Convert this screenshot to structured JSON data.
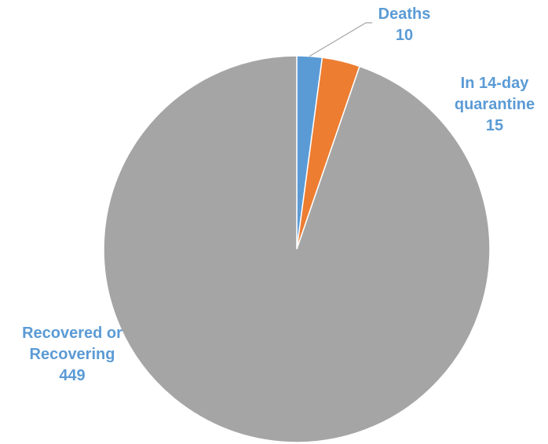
{
  "chart_data": {
    "type": "pie",
    "slices": [
      {
        "label_lines": [
          "Deaths"
        ],
        "value": 10,
        "value_label": "10",
        "color": "#5b9bd5"
      },
      {
        "label_lines": [
          "In 14-day",
          "quarantine"
        ],
        "value": 15,
        "value_label": "15",
        "color": "#ed7d31"
      },
      {
        "label_lines": [
          "Recovered or",
          "Recovering"
        ],
        "value": 449,
        "value_label": "449",
        "color": "#a5a5a5"
      }
    ],
    "label_color": "#5b9bd5",
    "leader_line_color": "#a5a5a5",
    "start_angle": "12 o'clock",
    "direction": "clockwise",
    "legend": "none"
  }
}
